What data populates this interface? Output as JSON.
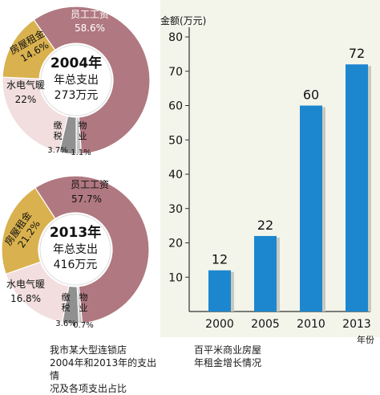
{
  "chart_data": [
    {
      "type": "pie",
      "center_label": {
        "year": "2004年",
        "line2": "年总支出",
        "line3": "273万元"
      },
      "slices": [
        {
          "name": "员工工资",
          "pct_label": "58.6%",
          "value": 58.6,
          "color": "#b07880"
        },
        {
          "name": "物业",
          "pct_label": "1.1%",
          "value": 1.1,
          "color": "#c6c6c6"
        },
        {
          "name": "缴税",
          "pct_label": "3.7%",
          "value": 3.7,
          "color": "#909090"
        },
        {
          "name": "水电气暖",
          "pct_label": "22%",
          "value": 22,
          "color": "#f2dede"
        },
        {
          "name": "房屋租金",
          "pct_label": "14.6%",
          "value": 14.6,
          "color": "#d9b14e"
        }
      ]
    },
    {
      "type": "pie",
      "center_label": {
        "year": "2013年",
        "line2": "年总支出",
        "line3": "416万元"
      },
      "slices": [
        {
          "name": "员工工资",
          "pct_label": "57.7%",
          "value": 57.7,
          "color": "#b07880"
        },
        {
          "name": "物业",
          "pct_label": "0.7%",
          "value": 0.7,
          "color": "#c6c6c6"
        },
        {
          "name": "缴税",
          "pct_label": "3.6%",
          "value": 3.6,
          "color": "#909090"
        },
        {
          "name": "水电气暖",
          "pct_label": "16.8%",
          "value": 16.8,
          "color": "#f2dede"
        },
        {
          "name": "房屋租金",
          "pct_label": "21.2%",
          "value": 21.2,
          "color": "#d9b14e"
        }
      ]
    },
    {
      "type": "bar",
      "categories": [
        "2000",
        "2005",
        "2010",
        "2013"
      ],
      "values": [
        12,
        22,
        60,
        72
      ],
      "ylabel": "金额(万元)",
      "xlabel": "年份",
      "ylim": [
        0,
        80
      ],
      "yticks": [
        "10",
        "20",
        "30",
        "40",
        "50",
        "60",
        "70",
        "80"
      ],
      "bar_color": "#1c87cf",
      "grid": false
    }
  ],
  "captions": {
    "left": [
      "我市某大型连锁店",
      "2004年和2013年的支出情",
      "况及各项支出占比"
    ],
    "right": [
      "百平米商业房屋",
      "年租金增长情况"
    ]
  }
}
